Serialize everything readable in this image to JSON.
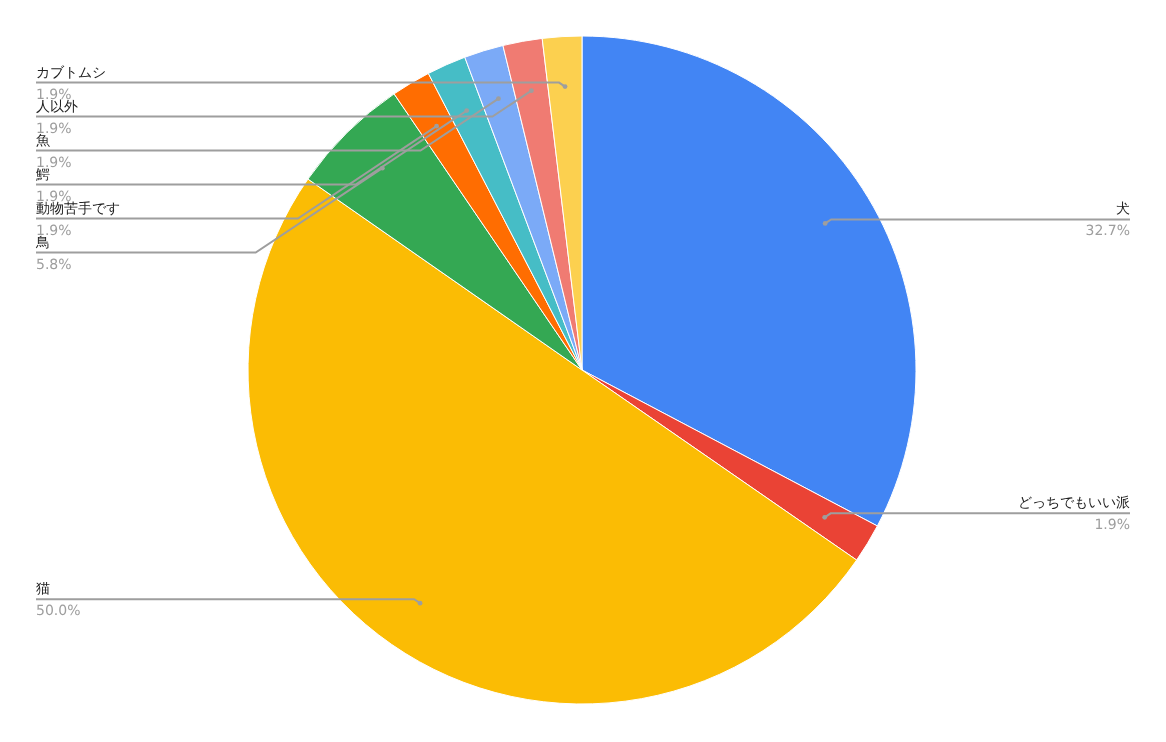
{
  "chart_data": {
    "type": "pie",
    "categories": [
      "犬",
      "どっちでもいい派",
      "猫",
      "鳥",
      "動物苦手です",
      "鰐",
      "魚",
      "人以外",
      "カブトムシ"
    ],
    "values": [
      32.7,
      1.9,
      50.0,
      5.8,
      1.9,
      1.9,
      1.9,
      1.9,
      1.9
    ],
    "colors": [
      "#4285f4",
      "#ea4335",
      "#fbbc04",
      "#34a853",
      "#ff6d01",
      "#46bdc6",
      "#7baaf7",
      "#f07b72",
      "#fcd04f"
    ],
    "value_labels": [
      "32.7%",
      "1.9%",
      "50.0%",
      "5.8%",
      "1.9%",
      "1.9%",
      "1.9%",
      "1.9%",
      "1.9%"
    ]
  }
}
